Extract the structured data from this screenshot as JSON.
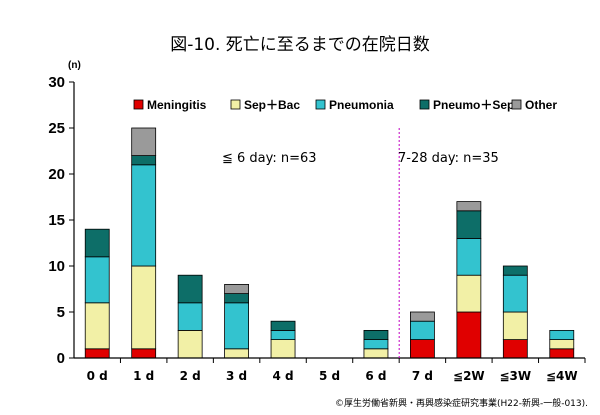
{
  "chart_data": {
    "type": "bar",
    "stacked": true,
    "title": "図-10. 死亡に至るまでの在院日数",
    "ylabel": "(n)",
    "ylim": [
      0,
      30
    ],
    "yticks": [
      0,
      5,
      10,
      15,
      20,
      25,
      30
    ],
    "categories": [
      "0 d",
      "1 d",
      "2 d",
      "3 d",
      "4 d",
      "5 d",
      "6 d",
      "7 d",
      "≦2W",
      "≦3W",
      "≦4W"
    ],
    "series": [
      {
        "name": "Meningitis",
        "color": "#e00000",
        "values": [
          1,
          1,
          0,
          0,
          0,
          0,
          0,
          2,
          5,
          2,
          1
        ]
      },
      {
        "name": "Sep＋Bac",
        "color": "#f2f0a6",
        "values": [
          5,
          9,
          3,
          1,
          2,
          0,
          1,
          0,
          4,
          3,
          1
        ]
      },
      {
        "name": "Pneumonia",
        "color": "#33c3cf",
        "values": [
          5,
          11,
          3,
          5,
          1,
          0,
          1,
          2,
          4,
          4,
          1
        ]
      },
      {
        "name": "Pneumo＋Sep",
        "color": "#0d6e68",
        "values": [
          3,
          1,
          3,
          1,
          1,
          0,
          1,
          0,
          3,
          1,
          0
        ]
      },
      {
        "name": "Other",
        "color": "#9a9a9a",
        "values": [
          0,
          3,
          0,
          1,
          0,
          0,
          0,
          1,
          1,
          0,
          0
        ]
      }
    ],
    "annotations": [
      {
        "text": "≦ 6 day:  n=63"
      },
      {
        "text": "7-28 day: n=35"
      }
    ],
    "divider_after_category": "6 d",
    "legend_position": "top",
    "grid": false
  },
  "credit": "©厚生労働省新興・再興感染症研究事業(H22-新興-一般-013)."
}
